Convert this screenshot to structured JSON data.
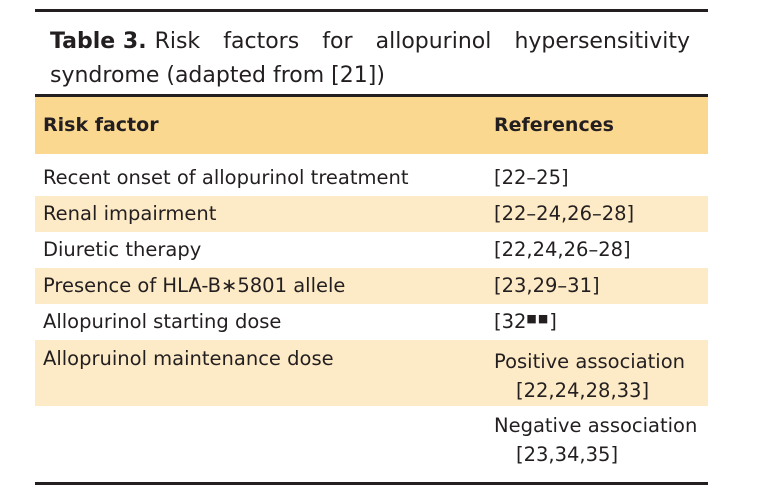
{
  "table": {
    "label": "Table 3.",
    "caption_line1": "Risk factors for allopurinol hypersensitivity",
    "caption_line2": "syndrome (adapted from [21])",
    "headers": {
      "factor": "Risk factor",
      "references": "References"
    },
    "rows": [
      {
        "factor": "Recent onset of allopurinol treatment",
        "references": "[22–25]"
      },
      {
        "factor": "Renal impairment",
        "references": "[22–24,26–28]"
      },
      {
        "factor": "Diuretic therapy",
        "references": "[22,24,26–28]"
      },
      {
        "factor": "Presence of HLA-B∗5801 allele",
        "references": "[23,29–31]"
      },
      {
        "factor": "Allopurinol starting dose",
        "references_pre": "[32",
        "references_marks": "■■",
        "references_post": "]"
      },
      {
        "factor": "Allopruinol maintenance dose",
        "assoc": "Positive association",
        "refs": "[22,24,28,33]"
      },
      {
        "factor": "",
        "assoc": "Negative association",
        "refs": "[23,34,35]"
      }
    ]
  },
  "colors": {
    "header_bg": "#fbd890",
    "shade_bg": "#fdeac6",
    "rule": "#231f20"
  }
}
